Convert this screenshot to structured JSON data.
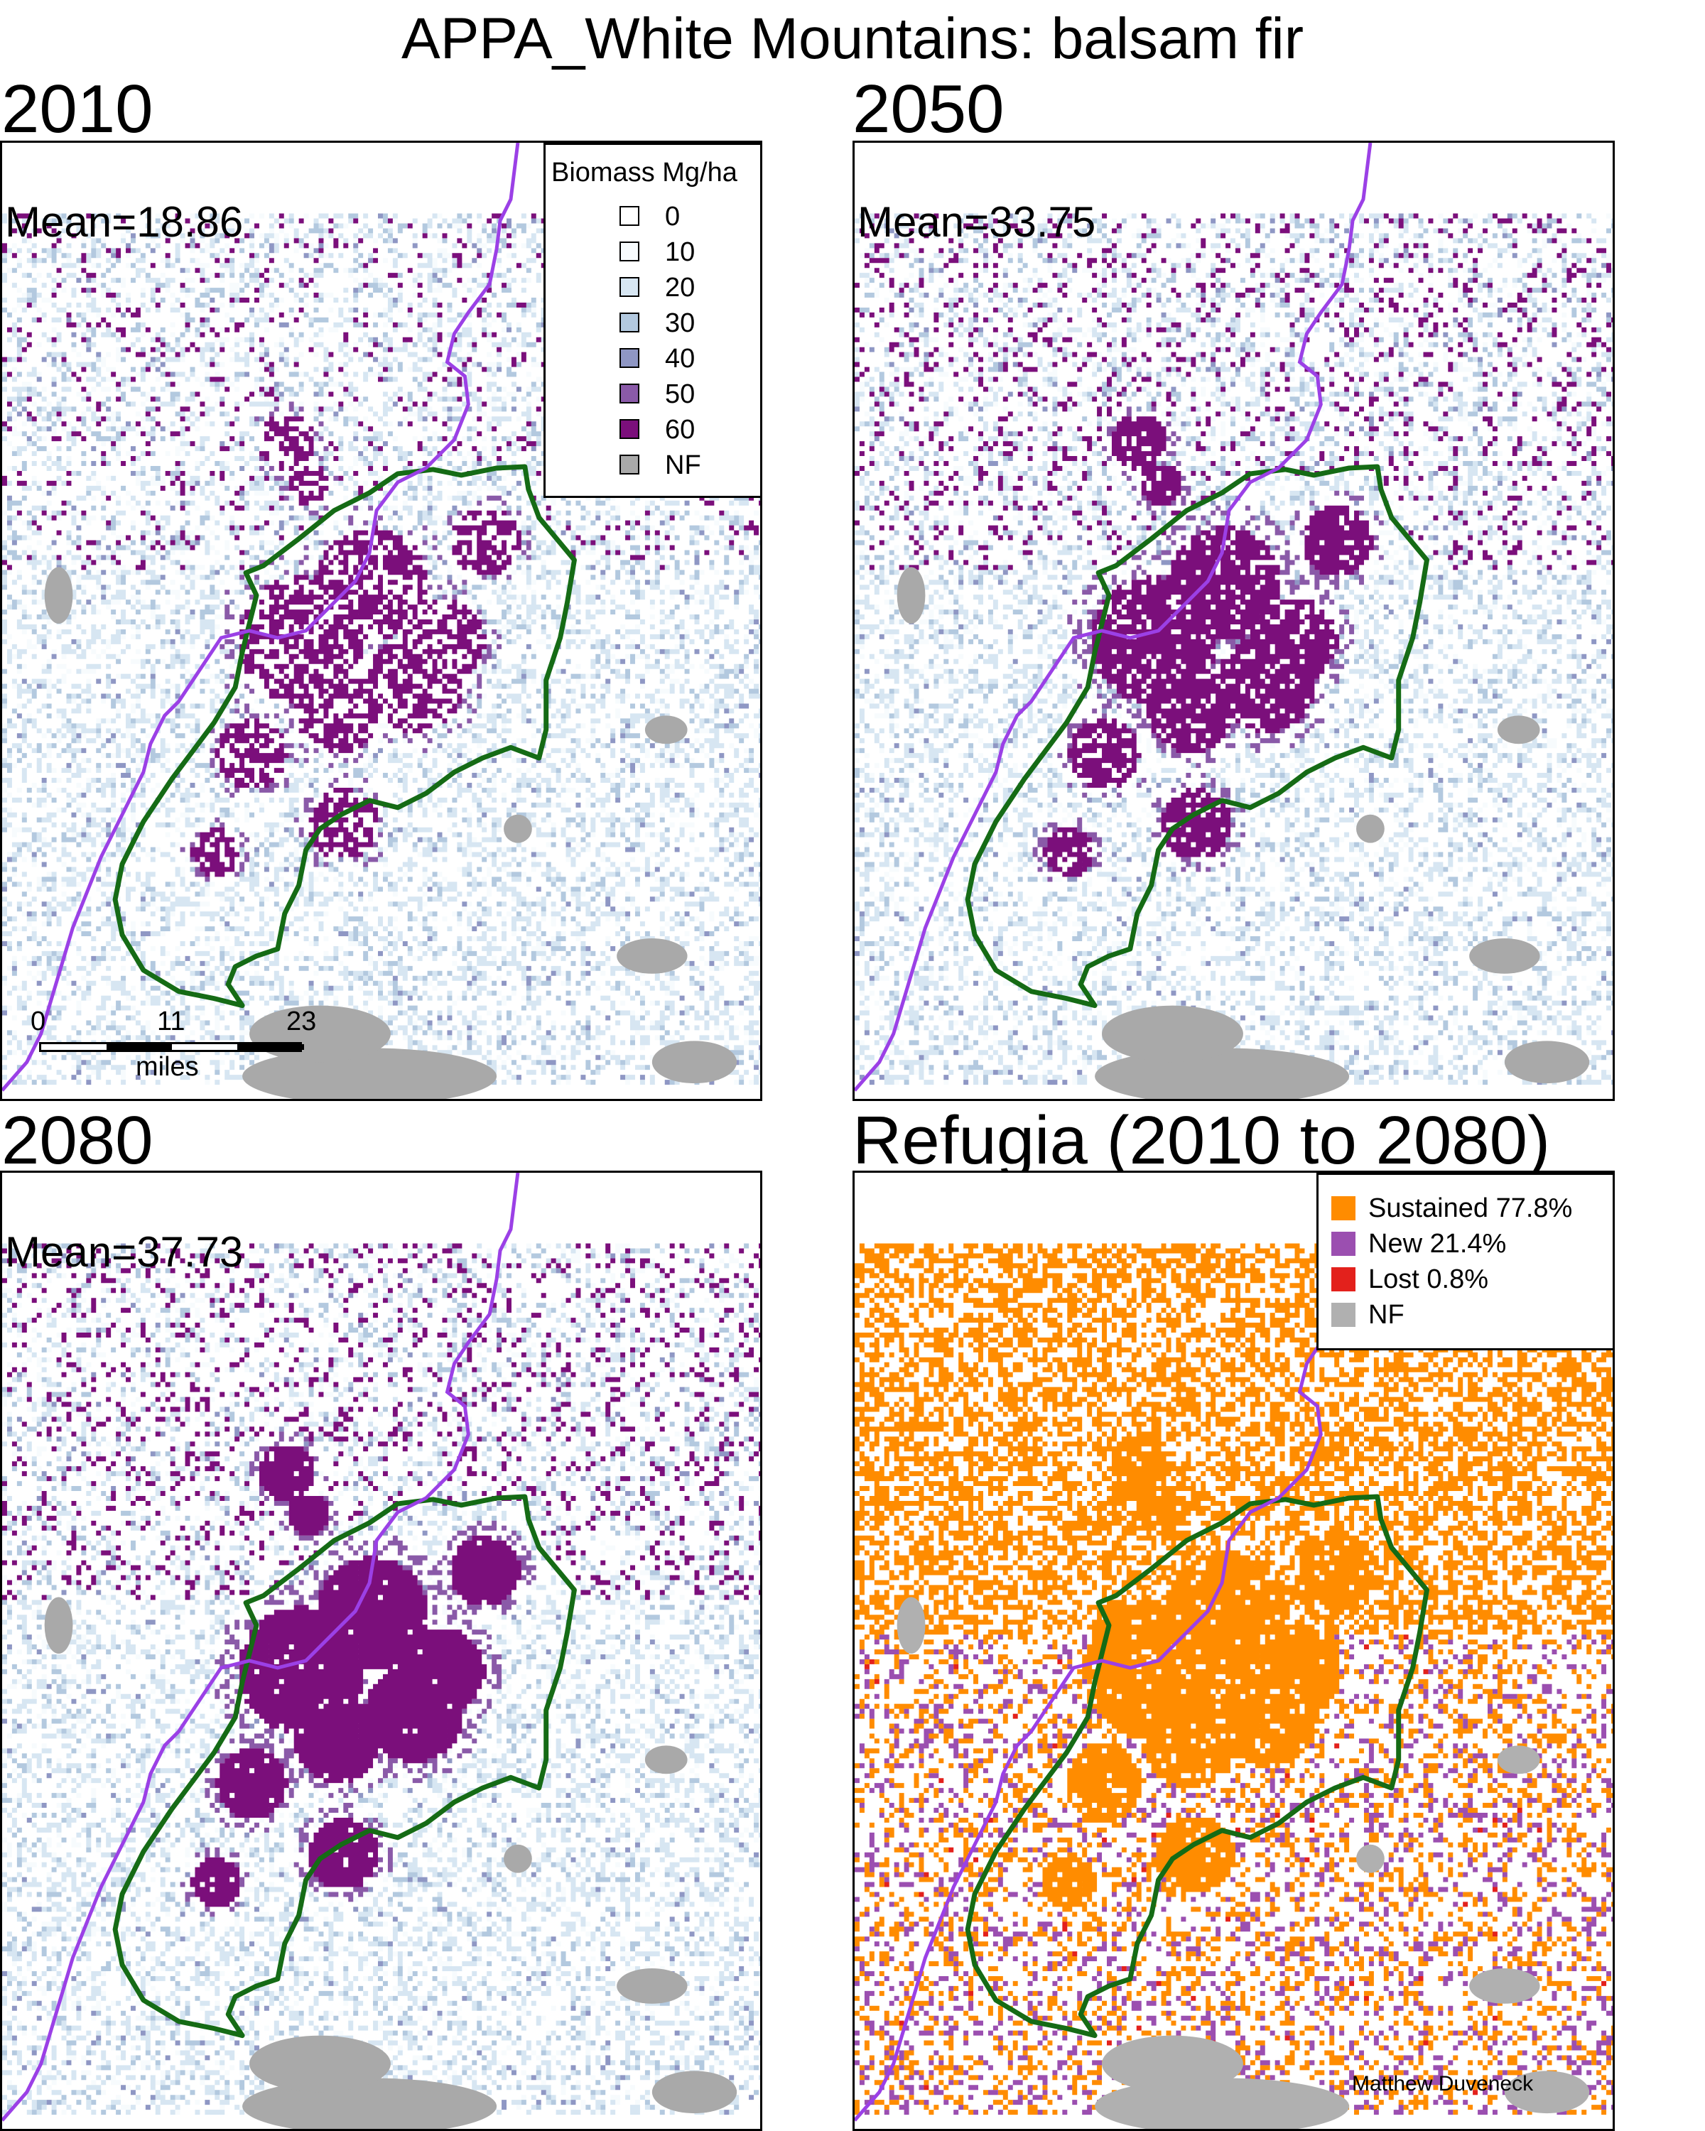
{
  "title": "APPA_White Mountains: balsam fir",
  "panels": [
    {
      "id": "p2010",
      "label": "2010",
      "mean": "Mean=18.86",
      "density": 0.55
    },
    {
      "id": "p2050",
      "label": "2050",
      "mean": "Mean=33.75",
      "density": 0.85
    },
    {
      "id": "p2080",
      "label": "2080",
      "mean": "Mean=37.73",
      "density": 1.0
    },
    {
      "id": "refugia",
      "label": "Refugia (2010 to 2080)"
    }
  ],
  "biomass_legend": {
    "title": "Biomass Mg/ha",
    "items": [
      {
        "label": "0",
        "color": "#ffffff"
      },
      {
        "label": "10",
        "color": "#f7fbfd"
      },
      {
        "label": "20",
        "color": "#d7e6f2"
      },
      {
        "label": "30",
        "color": "#b3c9df"
      },
      {
        "label": "40",
        "color": "#8f97c4"
      },
      {
        "label": "50",
        "color": "#8a5aa8"
      },
      {
        "label": "60",
        "color": "#7b0f7b"
      },
      {
        "label": "NF",
        "color": "#a9a9a9"
      }
    ]
  },
  "refugia_legend": {
    "items": [
      {
        "label": "Sustained 77.8%",
        "color": "#ff8c00"
      },
      {
        "label": "New 21.4%",
        "color": "#9b4fb0"
      },
      {
        "label": "Lost 0.8%",
        "color": "#e3211c"
      },
      {
        "label": "NF",
        "color": "#b0b0b0"
      }
    ]
  },
  "scale_bar": {
    "ticks": [
      "0",
      "11",
      "23"
    ],
    "unit": "miles"
  },
  "credit": "Matthew Duveneck",
  "colors": {
    "boundary": "#156b15",
    "river": "#9b40e6"
  }
}
